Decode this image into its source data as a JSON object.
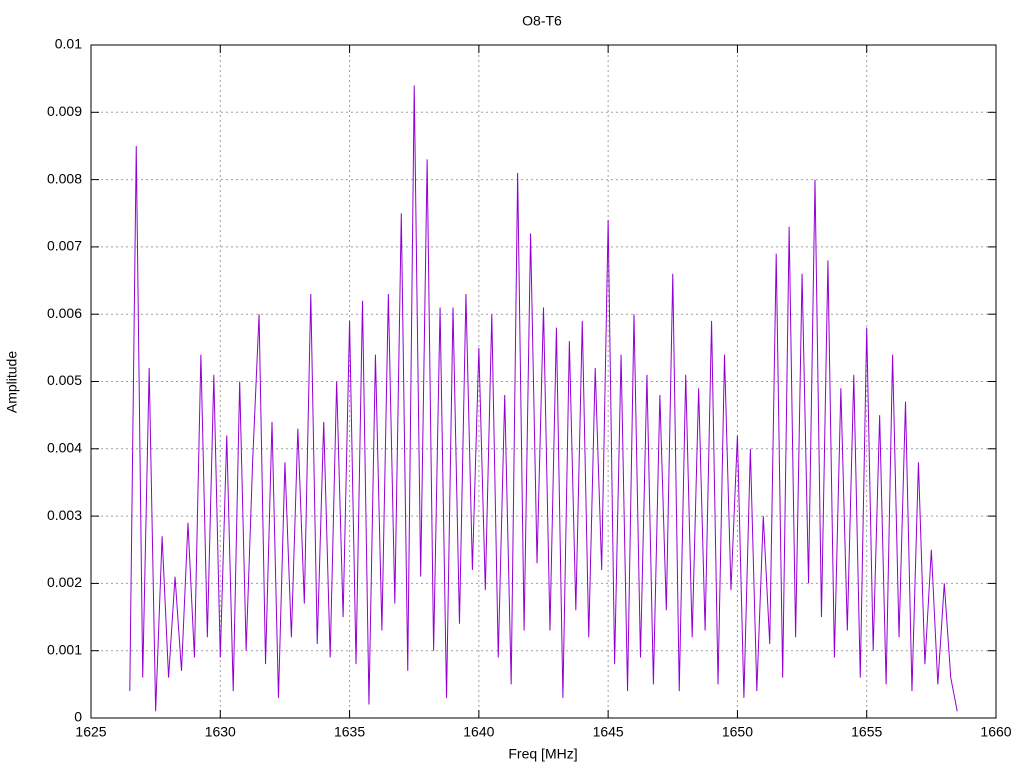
{
  "chart_data": {
    "type": "line",
    "title": "O8-T6",
    "x_label": "Freq [MHz]",
    "y_label": "Amplitude",
    "xlim": [
      1625,
      1660
    ],
    "xticks": [
      1625,
      1630,
      1635,
      1640,
      1645,
      1650,
      1655,
      1660
    ],
    "ylim": [
      0,
      0.01
    ],
    "yticks": [
      0,
      0.001,
      0.002,
      0.003,
      0.004,
      0.005,
      0.006,
      0.007,
      0.008,
      0.009,
      0.01
    ],
    "grid": true,
    "x": [
      1626.5,
      1626.75,
      1627,
      1627.25,
      1627.5,
      1627.75,
      1628,
      1628.25,
      1628.5,
      1628.75,
      1629,
      1629.25,
      1629.5,
      1629.75,
      1630,
      1630.25,
      1630.5,
      1630.75,
      1631,
      1631.25,
      1631.5,
      1631.75,
      1632,
      1632.25,
      1632.5,
      1632.75,
      1633,
      1633.25,
      1633.5,
      1633.75,
      1634,
      1634.25,
      1634.5,
      1634.75,
      1635,
      1635.25,
      1635.5,
      1635.75,
      1636,
      1636.25,
      1636.5,
      1636.75,
      1637,
      1637.25,
      1637.5,
      1637.75,
      1638,
      1638.25,
      1638.5,
      1638.75,
      1639,
      1639.25,
      1639.5,
      1639.75,
      1640,
      1640.25,
      1640.5,
      1640.75,
      1641,
      1641.25,
      1641.5,
      1641.75,
      1642,
      1642.25,
      1642.5,
      1642.75,
      1643,
      1643.25,
      1643.5,
      1643.75,
      1644,
      1644.25,
      1644.5,
      1644.75,
      1645,
      1645.25,
      1645.5,
      1645.75,
      1646,
      1646.25,
      1646.5,
      1646.75,
      1647,
      1647.25,
      1647.5,
      1647.75,
      1648,
      1648.25,
      1648.5,
      1648.75,
      1649,
      1649.25,
      1649.5,
      1649.75,
      1650,
      1650.25,
      1650.5,
      1650.75,
      1651,
      1651.25,
      1651.5,
      1651.75,
      1652,
      1652.25,
      1652.5,
      1652.75,
      1653,
      1653.25,
      1653.5,
      1653.75,
      1654,
      1654.25,
      1654.5,
      1654.75,
      1655,
      1655.25,
      1655.5,
      1655.75,
      1656,
      1656.25,
      1656.5,
      1656.75,
      1657,
      1657.25,
      1657.5,
      1657.75,
      1658,
      1658.25,
      1658.5
    ],
    "series": [
      {
        "color": "#9400d3",
        "values": [
          0.0004,
          0.0085,
          0.0006,
          0.0052,
          0.0001,
          0.0027,
          0.0006,
          0.0021,
          0.0007,
          0.0029,
          0.0009,
          0.0054,
          0.0012,
          0.0051,
          0.0009,
          0.0042,
          0.0004,
          0.005,
          0.001,
          0.0038,
          0.006,
          0.0008,
          0.0044,
          0.0003,
          0.0038,
          0.0012,
          0.0043,
          0.0017,
          0.0063,
          0.0011,
          0.0044,
          0.0009,
          0.005,
          0.0015,
          0.0059,
          0.0008,
          0.0062,
          0.0002,
          0.0054,
          0.0013,
          0.0063,
          0.0017,
          0.0075,
          0.0007,
          0.0094,
          0.0021,
          0.0083,
          0.001,
          0.0061,
          0.0003,
          0.0061,
          0.0014,
          0.0063,
          0.0022,
          0.0055,
          0.0019,
          0.006,
          0.0009,
          0.0048,
          0.0005,
          0.0081,
          0.0013,
          0.0072,
          0.0023,
          0.0061,
          0.0013,
          0.0058,
          0.0003,
          0.0056,
          0.0016,
          0.0059,
          0.0012,
          0.0052,
          0.0022,
          0.0074,
          0.0008,
          0.0054,
          0.0004,
          0.006,
          0.0009,
          0.0051,
          0.0005,
          0.0048,
          0.0016,
          0.0066,
          0.0004,
          0.0051,
          0.0012,
          0.0049,
          0.0013,
          0.0059,
          0.0005,
          0.0054,
          0.0019,
          0.0042,
          0.0003,
          0.004,
          0.0004,
          0.003,
          0.0011,
          0.0069,
          0.0006,
          0.0073,
          0.0012,
          0.0066,
          0.002,
          0.008,
          0.0015,
          0.0068,
          0.0009,
          0.0049,
          0.0013,
          0.0051,
          0.0006,
          0.0058,
          0.001,
          0.0045,
          0.0005,
          0.0054,
          0.0012,
          0.0047,
          0.0004,
          0.0038,
          0.0008,
          0.0025,
          0.0005,
          0.002,
          0.0006,
          0.0001
        ]
      }
    ]
  }
}
